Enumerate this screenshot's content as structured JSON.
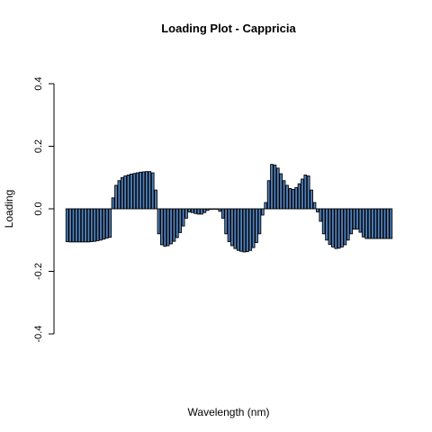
{
  "chart_data": {
    "type": "bar",
    "title": "Loading Plot - Cappricia",
    "xlabel": "Wavelength (nm)",
    "ylabel": "Loading",
    "ylim": [
      -0.4,
      0.4
    ],
    "yticks": [
      "-0.4",
      "-0.2",
      "0.0",
      "0.2",
      "0.4"
    ],
    "ytick_values": [
      -0.4,
      -0.2,
      0.0,
      0.2,
      0.4
    ],
    "bar_color": "#4f81bd",
    "bar_border": "#000000",
    "values": [
      -0.105,
      -0.106,
      -0.106,
      -0.106,
      -0.106,
      -0.106,
      -0.106,
      -0.106,
      -0.105,
      -0.104,
      -0.102,
      -0.1,
      -0.097,
      -0.094,
      -0.091,
      0.035,
      0.075,
      0.09,
      0.1,
      0.105,
      0.108,
      0.111,
      0.113,
      0.115,
      0.117,
      0.118,
      0.119,
      0.119,
      0.115,
      0.06,
      -0.08,
      -0.115,
      -0.12,
      -0.118,
      -0.112,
      -0.104,
      -0.092,
      -0.076,
      -0.055,
      -0.03,
      -0.01,
      -0.012,
      -0.015,
      -0.017,
      -0.017,
      -0.012,
      -0.005,
      0.0,
      0.0,
      0.0,
      -0.008,
      -0.03,
      -0.08,
      -0.105,
      -0.118,
      -0.127,
      -0.133,
      -0.136,
      -0.138,
      -0.137,
      -0.133,
      -0.124,
      -0.108,
      -0.08,
      -0.02,
      0.02,
      0.09,
      0.142,
      0.14,
      0.13,
      0.112,
      0.09,
      0.075,
      0.065,
      0.062,
      0.068,
      0.08,
      0.095,
      0.108,
      0.105,
      0.06,
      0.02,
      -0.01,
      -0.04,
      -0.08,
      -0.1,
      -0.114,
      -0.122,
      -0.127,
      -0.126,
      -0.122,
      -0.115,
      -0.1,
      -0.08,
      -0.065,
      -0.065,
      -0.075,
      -0.09,
      -0.095,
      -0.095,
      -0.095,
      -0.095,
      -0.095,
      -0.095,
      -0.095,
      -0.095,
      -0.095
    ]
  }
}
